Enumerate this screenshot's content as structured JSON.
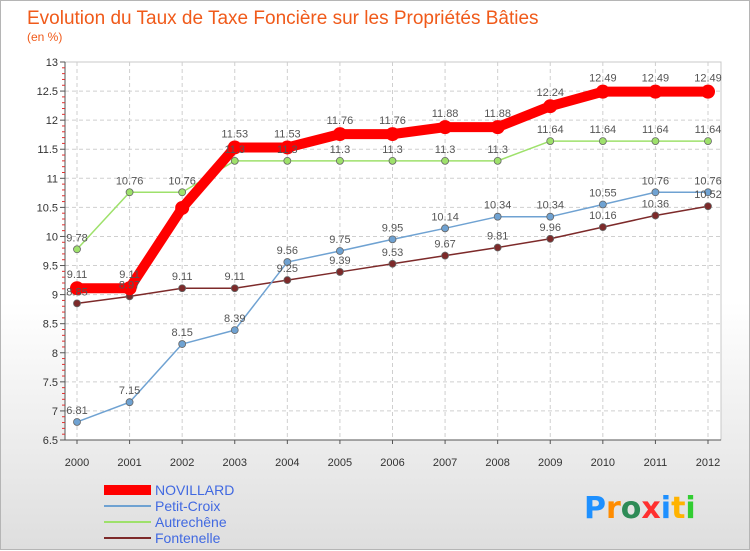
{
  "chart_data": {
    "type": "line",
    "title": "Evolution du Taux de Taxe Foncière sur les Propriétés Bâties",
    "ylabel": "(en %)",
    "xlabel": "",
    "x": [
      "2000",
      "2001",
      "2002",
      "2003",
      "2004",
      "2005",
      "2006",
      "2007",
      "2008",
      "2009",
      "2010",
      "2011",
      "2012"
    ],
    "ylim": [
      6.5,
      13
    ],
    "yticks": [
      "6.5",
      "7",
      "7.5",
      "8",
      "8.5",
      "9",
      "9.5",
      "10",
      "10.5",
      "11",
      "11.5",
      "12",
      "12.5",
      "13"
    ],
    "grid": true,
    "series": [
      {
        "name": "NOVILLARD",
        "color": "#ff0000",
        "values": [
          9.11,
          9.11,
          10.49,
          11.53,
          11.53,
          11.76,
          11.76,
          11.88,
          11.88,
          12.24,
          12.49,
          12.49,
          12.49
        ],
        "labels": [
          "9.11",
          "9.11",
          "",
          "11.53",
          "11.53",
          "11.76",
          "11.76",
          "11.88",
          "11.88",
          "12.24",
          "12.49",
          "12.49",
          "12.49"
        ]
      },
      {
        "name": "Petit-Croix",
        "color": "#6fa2d2",
        "values": [
          6.81,
          7.15,
          8.15,
          8.39,
          9.56,
          9.75,
          9.95,
          10.14,
          10.34,
          10.34,
          10.55,
          10.76,
          10.76
        ],
        "labels": [
          "6.81",
          "7.15",
          "8.15",
          "8.39",
          "9.56",
          "9.75",
          "9.95",
          "10.14",
          "10.34",
          "10.34",
          "10.55",
          "10.76",
          "10.76"
        ]
      },
      {
        "name": "Autrechêne",
        "color": "#9ee16b",
        "values": [
          9.78,
          10.76,
          10.76,
          11.3,
          11.3,
          11.3,
          11.3,
          11.3,
          11.3,
          11.64,
          11.64,
          11.64,
          11.64
        ],
        "labels": [
          "9.78",
          "10.76",
          "10.76",
          "11.3",
          "11.3",
          "11.3",
          "11.3",
          "11.3",
          "11.3",
          "11.64",
          "11.64",
          "11.64",
          "11.64"
        ]
      },
      {
        "name": "Fontenelle",
        "color": "#7d2a2a",
        "values": [
          8.85,
          8.97,
          9.11,
          9.11,
          9.25,
          9.39,
          9.53,
          9.67,
          9.81,
          9.96,
          10.16,
          10.36,
          10.52
        ],
        "labels": [
          "8.85",
          "8.97",
          "9.11",
          "9.11",
          "9.25",
          "9.39",
          "9.53",
          "9.67",
          "9.81",
          "9.96",
          "10.16",
          "10.36",
          "10.52"
        ]
      }
    ]
  },
  "logo": {
    "text": "Proxiti",
    "colors": [
      "#1e90ff",
      "#ff8c00",
      "#2e8b57",
      "#ff3030",
      "#1e90ff",
      "#ffb300",
      "#32cd32"
    ]
  }
}
